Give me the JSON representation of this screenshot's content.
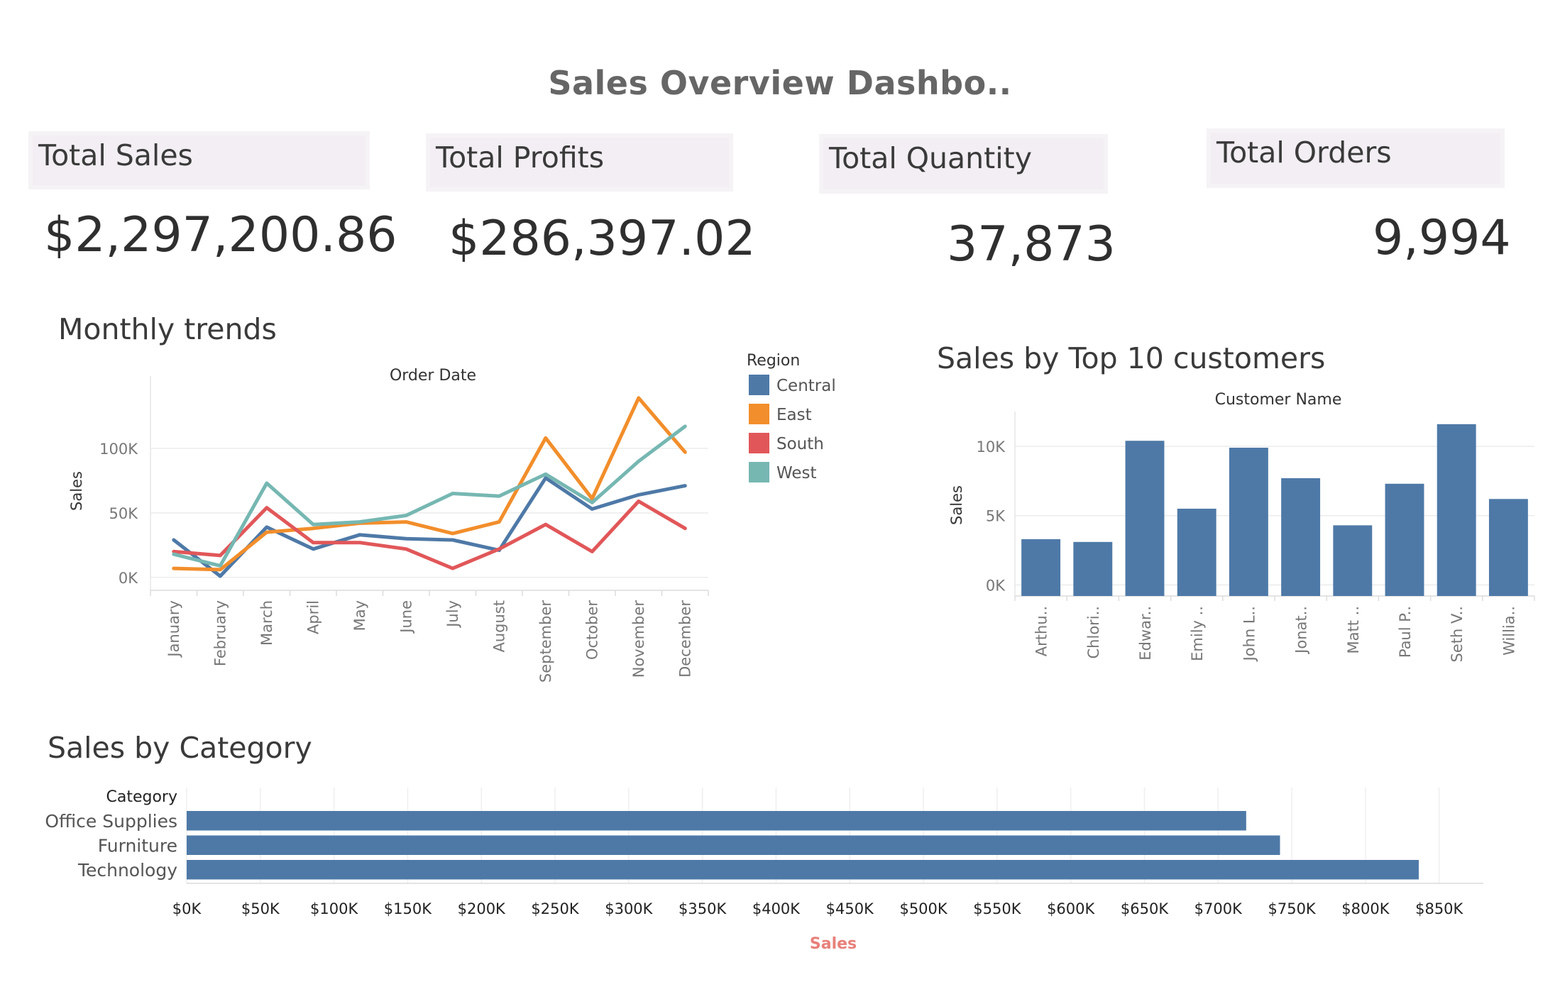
{
  "dashboard": {
    "title": "Sales Overview Dashbo..",
    "kpis": [
      {
        "label": "Total Sales",
        "value": "$2,297,200.86"
      },
      {
        "label": "Total Profits",
        "value": "$286,397.02"
      },
      {
        "label": "Total Quantity",
        "value": "37,873"
      },
      {
        "label": "Total Orders",
        "value": "9,994"
      }
    ]
  },
  "monthly": {
    "section_title": "Monthly trends",
    "legend_title": "Region"
  },
  "customers": {
    "section_title": "Sales by Top 10 customers"
  },
  "category": {
    "section_title": "Sales by Category"
  },
  "colors": {
    "Central": "#4e79a7",
    "East": "#f28e2b",
    "South": "#e15759",
    "West": "#76b7b2",
    "bar": "#4e79a7",
    "category_axis_title": "#e8807a"
  },
  "chart_data": [
    {
      "type": "line",
      "title": "Order Date",
      "xlabel": "Order Date",
      "ylabel": "Sales",
      "categories": [
        "January",
        "February",
        "March",
        "April",
        "May",
        "June",
        "July",
        "August",
        "September",
        "October",
        "November",
        "December"
      ],
      "yticks": [
        "0K",
        "50K",
        "100K"
      ],
      "ylim": [
        -10000,
        145000
      ],
      "grid": true,
      "legend_position": "right",
      "series": [
        {
          "name": "Central",
          "values": [
            29000,
            1000,
            39000,
            22000,
            33000,
            30000,
            29000,
            21000,
            77000,
            53000,
            64000,
            71000
          ]
        },
        {
          "name": "East",
          "values": [
            7000,
            6000,
            35000,
            38000,
            42000,
            43000,
            34000,
            43000,
            108000,
            61000,
            139000,
            97000
          ]
        },
        {
          "name": "South",
          "values": [
            20000,
            17000,
            54000,
            27000,
            27000,
            22000,
            7000,
            22000,
            41000,
            20000,
            59000,
            38000
          ]
        },
        {
          "name": "West",
          "values": [
            18000,
            9000,
            73000,
            41000,
            43000,
            48000,
            65000,
            63000,
            80000,
            58000,
            90000,
            117000
          ]
        }
      ]
    },
    {
      "type": "bar",
      "title": "Customer Name",
      "xlabel": "Customer Name",
      "ylabel": "Sales",
      "categories": [
        "Arthu..",
        "Chlori..",
        "Edwar..",
        "Emily ..",
        "John L..",
        "Jonat..",
        "Matt ..",
        "Paul P..",
        "Seth V..",
        "Willia.."
      ],
      "values": [
        3300,
        3100,
        10400,
        5500,
        9900,
        7700,
        4300,
        7300,
        11600,
        6200
      ],
      "yticks": [
        "0K",
        "5K",
        "10K"
      ],
      "ylim": [
        -800,
        12000
      ],
      "grid": true
    },
    {
      "type": "bar",
      "orientation": "horizontal",
      "category_header": "Category",
      "categories": [
        "Office Supplies",
        "Furniture",
        "Technology"
      ],
      "values": [
        719047,
        741999,
        836154
      ],
      "xlabel": "Sales",
      "xticks": [
        "$0K",
        "$50K",
        "$100K",
        "$150K",
        "$200K",
        "$250K",
        "$300K",
        "$350K",
        "$400K",
        "$450K",
        "$500K",
        "$550K",
        "$600K",
        "$650K",
        "$700K",
        "$750K",
        "$800K",
        "$850K"
      ],
      "xlim": [
        0,
        880000
      ],
      "grid": true
    }
  ]
}
